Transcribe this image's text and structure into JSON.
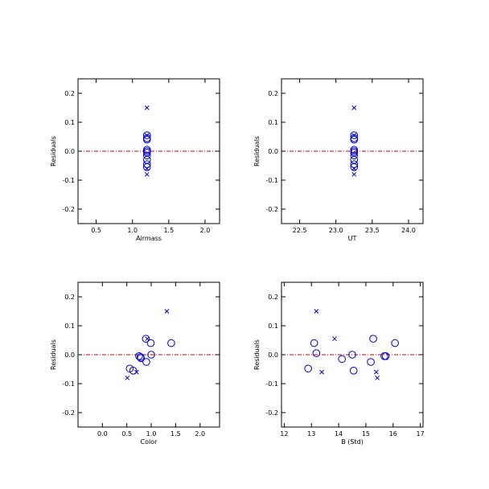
{
  "chart_data": [
    {
      "type": "scatter",
      "xlabel": "Airmass",
      "ylabel": "Residuals",
      "xlim": [
        0.25,
        2.2
      ],
      "ylim": [
        -0.25,
        0.25
      ],
      "xticks": [
        0.5,
        1.0,
        1.5,
        2.0
      ],
      "xtick_labels": [
        "0.5",
        "1.0",
        "1.5",
        "2.0"
      ],
      "yticks": [
        -0.2,
        -0.1,
        0.0,
        0.1,
        0.2
      ],
      "ytick_labels": [
        "-0.2",
        "-0.1",
        "0.0",
        "0.1",
        "0.2"
      ],
      "reference_line": {
        "y": 0.0,
        "color": "#cc0000",
        "style": "dash-dot"
      },
      "marker_color": "#0000cc",
      "series": [
        {
          "marker": "circle",
          "points": [
            [
              1.2,
              0.055
            ],
            [
              1.2,
              0.045
            ],
            [
              1.2,
              0.04
            ],
            [
              1.2,
              0.005
            ],
            [
              1.2,
              0.0
            ],
            [
              1.2,
              -0.005
            ],
            [
              1.2,
              -0.015
            ],
            [
              1.2,
              -0.03
            ],
            [
              1.2,
              -0.045
            ],
            [
              1.2,
              -0.055
            ]
          ]
        },
        {
          "marker": "x",
          "points": [
            [
              1.2,
              0.15
            ],
            [
              1.2,
              0.055
            ],
            [
              1.2,
              -0.06
            ],
            [
              1.2,
              -0.08
            ]
          ]
        }
      ]
    },
    {
      "type": "scatter",
      "xlabel": "UT",
      "ylabel": "Residuals",
      "xlim": [
        22.25,
        24.2
      ],
      "ylim": [
        -0.25,
        0.25
      ],
      "xticks": [
        22.5,
        23.0,
        23.5,
        24.0
      ],
      "xtick_labels": [
        "22.5",
        "23.0",
        "23.5",
        "24.0"
      ],
      "yticks": [
        -0.2,
        -0.1,
        0.0,
        0.1,
        0.2
      ],
      "ytick_labels": [
        "-0.2",
        "-0.1",
        "0.0",
        "0.1",
        "0.2"
      ],
      "reference_line": {
        "y": 0.0,
        "color": "#cc0000",
        "style": "dash-dot"
      },
      "marker_color": "#0000cc",
      "series": [
        {
          "marker": "circle",
          "points": [
            [
              23.25,
              0.055
            ],
            [
              23.25,
              0.045
            ],
            [
              23.25,
              0.04
            ],
            [
              23.25,
              0.005
            ],
            [
              23.25,
              0.0
            ],
            [
              23.25,
              -0.005
            ],
            [
              23.25,
              -0.015
            ],
            [
              23.25,
              -0.03
            ],
            [
              23.25,
              -0.045
            ],
            [
              23.25,
              -0.055
            ]
          ]
        },
        {
          "marker": "x",
          "points": [
            [
              23.25,
              0.15
            ],
            [
              23.25,
              0.055
            ],
            [
              23.25,
              -0.06
            ],
            [
              23.25,
              -0.08
            ]
          ]
        }
      ]
    },
    {
      "type": "scatter",
      "xlabel": "Color",
      "ylabel": "Residuals",
      "xlim": [
        -0.5,
        2.4
      ],
      "ylim": [
        -0.25,
        0.25
      ],
      "xticks": [
        0.0,
        0.5,
        1.0,
        1.5,
        2.0
      ],
      "xtick_labels": [
        "0.0",
        "0.5",
        "1.0",
        "1.5",
        "2.0"
      ],
      "yticks": [
        -0.2,
        -0.1,
        0.0,
        0.1,
        0.2
      ],
      "ytick_labels": [
        "-0.2",
        "-0.1",
        "0.0",
        "0.1",
        "0.2"
      ],
      "reference_line": {
        "y": 0.0,
        "color": "#cc0000",
        "style": "dash-dot"
      },
      "marker_color": "#0000cc",
      "series": [
        {
          "marker": "circle",
          "points": [
            [
              0.56,
              -0.048
            ],
            [
              0.63,
              -0.055
            ],
            [
              0.75,
              -0.005
            ],
            [
              0.79,
              -0.012
            ],
            [
              0.78,
              -0.008
            ],
            [
              0.89,
              0.055
            ],
            [
              0.9,
              -0.025
            ],
            [
              0.99,
              0.04
            ],
            [
              1.0,
              0.0
            ],
            [
              1.41,
              0.04
            ]
          ]
        },
        {
          "marker": "x",
          "points": [
            [
              0.51,
              -0.08
            ],
            [
              0.7,
              -0.06
            ],
            [
              0.92,
              0.055
            ],
            [
              1.32,
              0.15
            ]
          ]
        }
      ]
    },
    {
      "type": "scatter",
      "xlabel": "B (Std)",
      "ylabel": "Residuals",
      "xlim": [
        11.9,
        17.1
      ],
      "ylim": [
        -0.25,
        0.25
      ],
      "xticks": [
        12,
        13,
        14,
        15,
        16,
        17
      ],
      "xtick_labels": [
        "12",
        "13",
        "14",
        "15",
        "16",
        "17"
      ],
      "yticks": [
        -0.2,
        -0.1,
        0.0,
        0.1,
        0.2
      ],
      "ytick_labels": [
        "-0.2",
        "-0.1",
        "0.0",
        "0.1",
        "0.2"
      ],
      "reference_line": {
        "y": 0.0,
        "color": "#cc0000",
        "style": "dash-dot"
      },
      "marker_color": "#0000cc",
      "series": [
        {
          "marker": "circle",
          "points": [
            [
              12.88,
              -0.048
            ],
            [
              13.1,
              0.04
            ],
            [
              13.18,
              0.005
            ],
            [
              14.12,
              -0.015
            ],
            [
              14.5,
              0.0
            ],
            [
              14.55,
              -0.055
            ],
            [
              15.18,
              -0.025
            ],
            [
              15.27,
              0.055
            ],
            [
              15.68,
              -0.005
            ],
            [
              15.73,
              -0.005
            ],
            [
              16.07,
              0.04
            ]
          ]
        },
        {
          "marker": "x",
          "points": [
            [
              13.18,
              0.15
            ],
            [
              13.38,
              -0.06
            ],
            [
              13.85,
              0.055
            ],
            [
              15.38,
              -0.06
            ],
            [
              15.42,
              -0.08
            ]
          ]
        }
      ]
    }
  ]
}
